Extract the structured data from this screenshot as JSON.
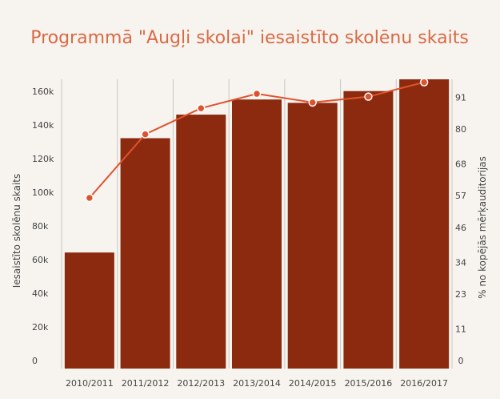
{
  "chart_data": {
    "type": "bar",
    "title": "Programmā \"Augļi skolai\" iesaistīto skolēnu skaits",
    "categories": [
      "2010/2011",
      "2011/2012",
      "2012/2013",
      "2013/2014",
      "2014/2015",
      "2015/2016",
      "2016/2017"
    ],
    "ylabel": "Iesaistīto skolēnu skaits",
    "y2label": "% no kopējās mērķauditorijas",
    "ylim": [
      0,
      172000
    ],
    "y2lim": [
      0,
      100
    ],
    "yticks": [
      0,
      20000,
      40000,
      60000,
      80000,
      100000,
      120000,
      140000,
      160000
    ],
    "ytick_labels": [
      "0",
      "20k",
      "40k",
      "60k",
      "80k",
      "100k",
      "120k",
      "140k",
      "160k"
    ],
    "y2ticks": [
      0,
      11,
      23,
      34,
      46,
      57,
      68,
      80,
      91
    ],
    "grid": "vertical",
    "series": [
      {
        "type": "bar",
        "axis": "left",
        "values": [
          69000,
          137000,
          151000,
          160000,
          158000,
          165000,
          172000
        ]
      },
      {
        "type": "line",
        "axis": "right",
        "values": [
          59,
          81,
          90,
          95,
          92,
          94,
          99
        ]
      }
    ]
  },
  "colors": {
    "bar": "#8b2a0e",
    "line": "#e0522e",
    "title": "#d96a45",
    "text": "#444444",
    "grid": "#c9c6c1",
    "background": "#f7f4ef"
  }
}
